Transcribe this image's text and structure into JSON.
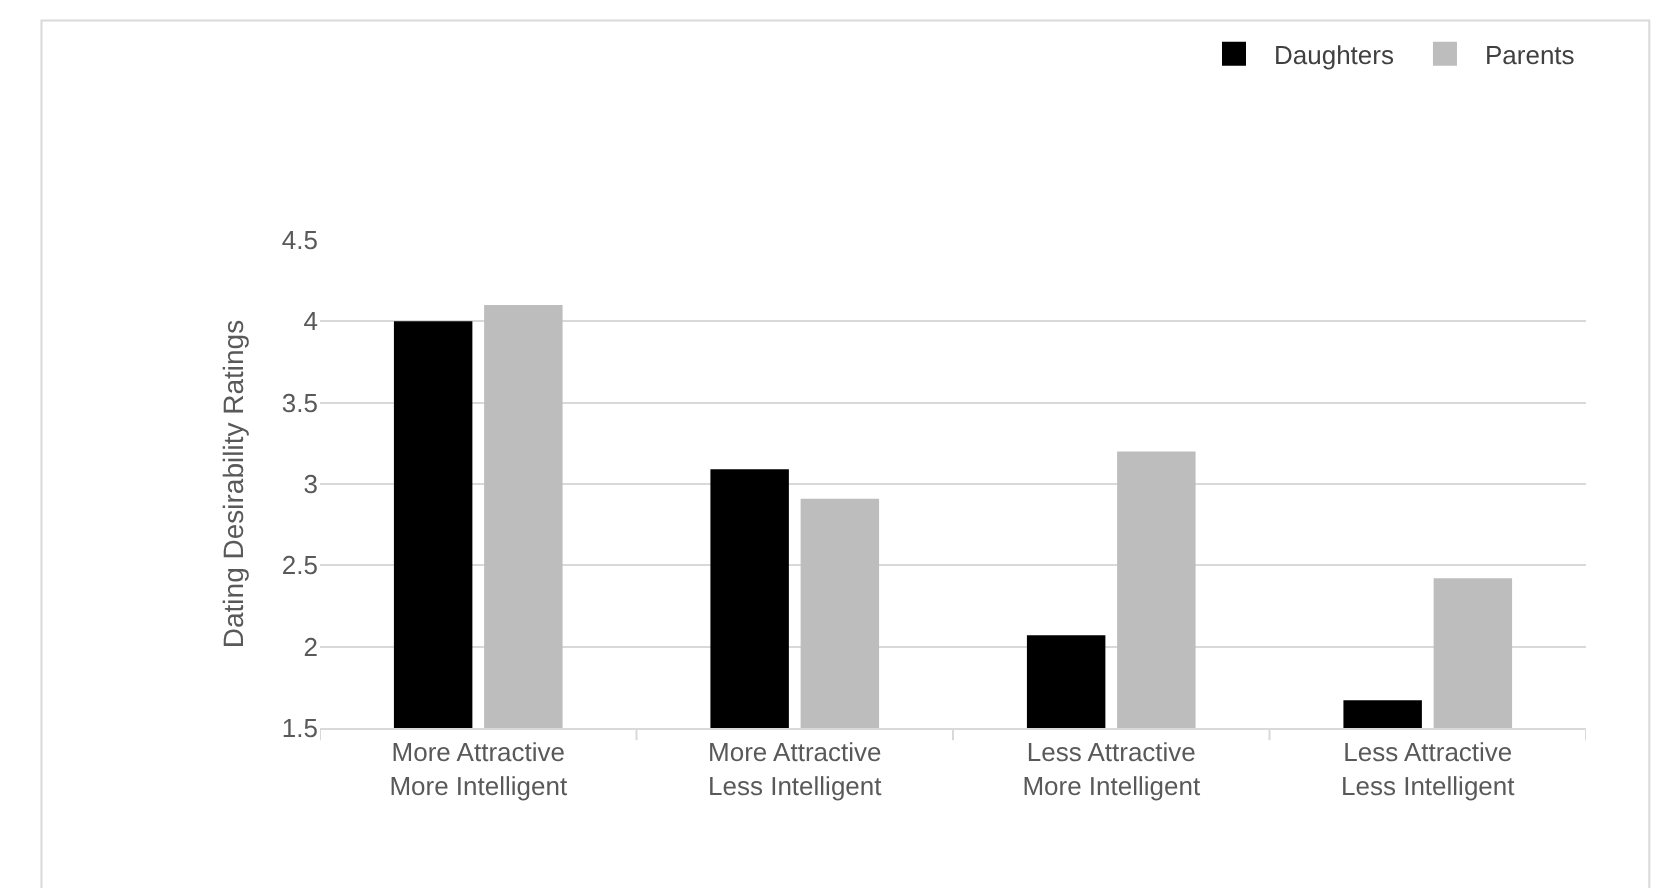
{
  "chart_data": {
    "type": "bar",
    "ylabel": "Dating Desirability Ratings",
    "categories": [
      "More Attractive\nMore Intelligent",
      "More Attractive\nLess Intelligent",
      "Less Attractive\nMore Intelligent",
      "Less Attractive\nLess Intelligent"
    ],
    "series": [
      {
        "name": "Daughters",
        "color": "#000000",
        "values": [
          4.0,
          3.09,
          2.07,
          1.67
        ]
      },
      {
        "name": "Parents",
        "color": "#bcbdbc",
        "values": [
          4.1,
          2.91,
          3.2,
          2.42
        ]
      }
    ],
    "ylim": [
      1.5,
      4.5
    ],
    "yticks": [
      1.5,
      2,
      2.5,
      3,
      3.5,
      4,
      4.5
    ],
    "grid": "y",
    "legend": "top right"
  }
}
